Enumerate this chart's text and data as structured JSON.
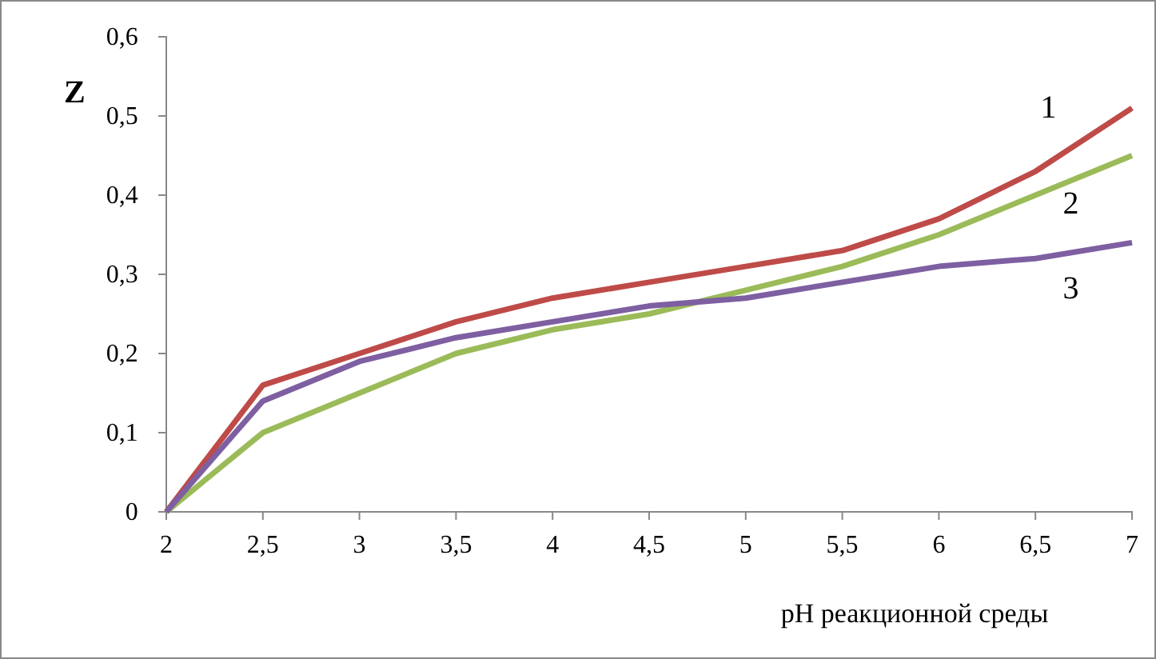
{
  "chart_data": {
    "type": "line",
    "xlabel": "pH реакционной среды",
    "ylabel": "Z",
    "x": [
      2,
      2.5,
      3,
      3.5,
      4,
      4.5,
      5,
      5.5,
      6,
      6.5,
      7
    ],
    "xlim": [
      2,
      7
    ],
    "xticks": [
      2,
      {
        "value": 2.5,
        "label": "2,5"
      },
      3,
      {
        "value": 3.5,
        "label": "3,5"
      },
      4,
      {
        "value": 4.5,
        "label": "4,5"
      },
      5,
      {
        "value": 5.5,
        "label": "5,5"
      },
      6,
      {
        "value": 6.5,
        "label": "6,5"
      },
      7
    ],
    "ylim": [
      0,
      0.6
    ],
    "yticks": [
      0,
      {
        "value": 0.1,
        "label": "0,1"
      },
      {
        "value": 0.2,
        "label": "0,2"
      },
      {
        "value": 0.3,
        "label": "0,3"
      },
      {
        "value": 0.4,
        "label": "0,4"
      },
      {
        "value": 0.5,
        "label": "0,5"
      },
      {
        "value": 0.6,
        "label": "0,6"
      }
    ],
    "grid": false,
    "series": [
      {
        "name": "1",
        "color": "#be4b48",
        "values": [
          0,
          0.16,
          0.2,
          0.24,
          0.27,
          0.29,
          0.31,
          0.33,
          0.37,
          0.43,
          0.51
        ]
      },
      {
        "name": "2",
        "color": "#9bbb59",
        "values": [
          0,
          0.1,
          0.15,
          0.2,
          0.23,
          0.25,
          0.28,
          0.31,
          0.35,
          0.4,
          0.45
        ]
      },
      {
        "name": "3",
        "color": "#7e5fa1",
        "values": [
          0,
          0.14,
          0.19,
          0.22,
          0.24,
          0.26,
          0.27,
          0.29,
          0.31,
          0.32,
          0.34
        ]
      }
    ]
  }
}
